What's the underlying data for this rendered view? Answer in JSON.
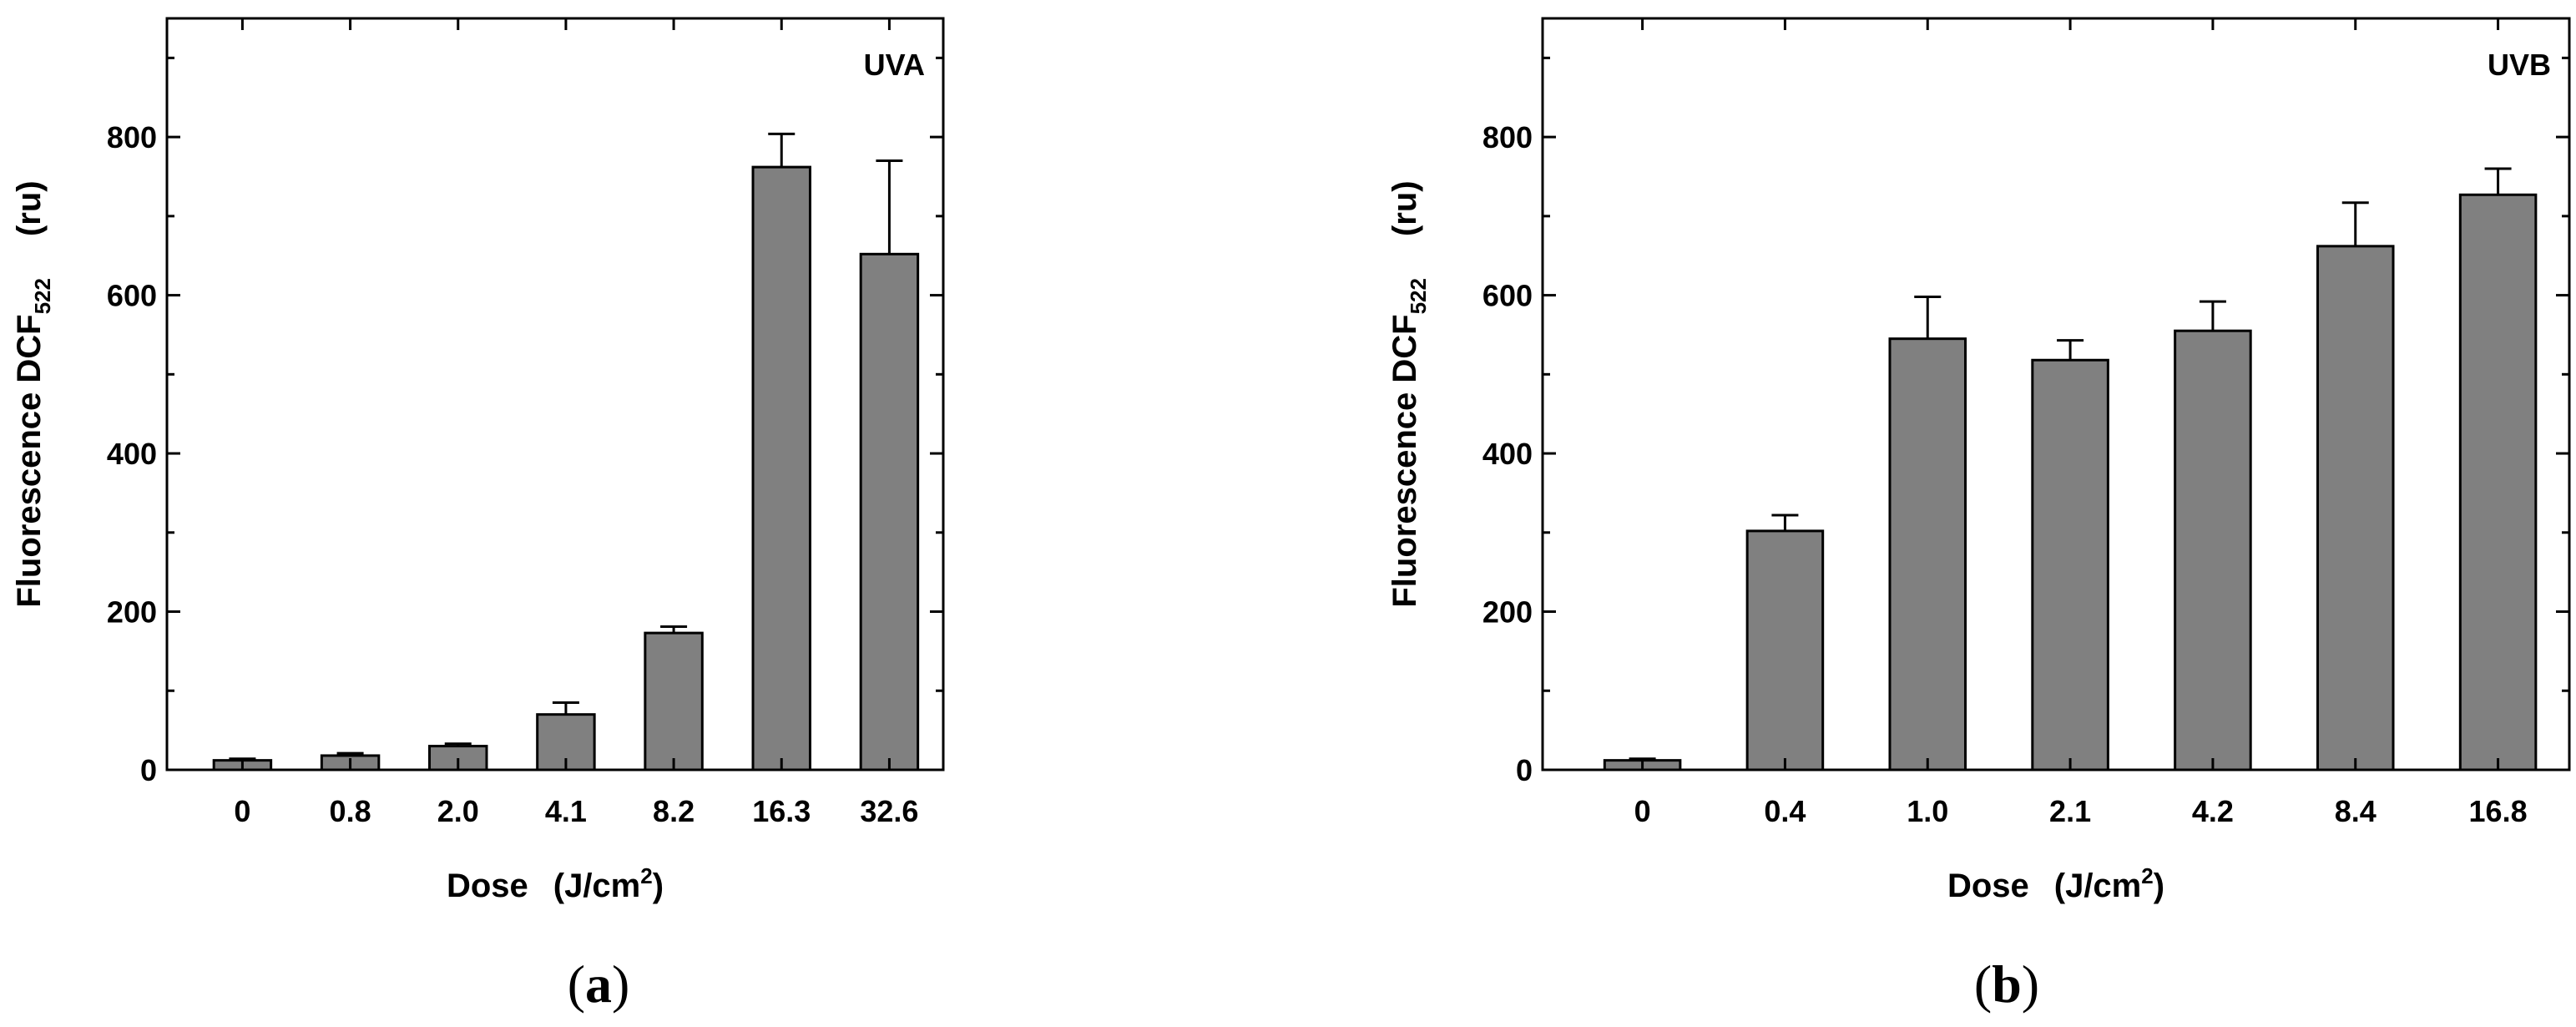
{
  "chart_data": [
    {
      "type": "bar",
      "panel_label": "UVA",
      "caption": {
        "open": "(",
        "letter": "a",
        "close": ")"
      },
      "categories": [
        "0",
        "0.8",
        "2.0",
        "4.1",
        "8.2",
        "16.3",
        "32.6"
      ],
      "values": [
        12,
        18,
        30,
        70,
        173,
        762,
        652
      ],
      "errors": [
        2,
        3,
        3,
        15,
        8,
        42,
        118
      ],
      "ylim": [
        0,
        950
      ],
      "yticks": [
        0,
        200,
        400,
        600,
        800
      ],
      "ylabel": {
        "main": "Fluorescence DCF",
        "sub": "522",
        "unit": "(ru)"
      },
      "xlabel": {
        "main": "Dose",
        "unit_open": "(J/cm",
        "sup": "2",
        "unit_close": ")"
      },
      "bar_color": "#808080"
    },
    {
      "type": "bar",
      "panel_label": "UVB",
      "caption": {
        "open": "(",
        "letter": "b",
        "close": ")"
      },
      "categories": [
        "0",
        "0.4",
        "1.0",
        "2.1",
        "4.2",
        "8.4",
        "16.8"
      ],
      "values": [
        12,
        302,
        545,
        518,
        555,
        662,
        727
      ],
      "errors": [
        2,
        20,
        53,
        25,
        37,
        55,
        33
      ],
      "ylim": [
        0,
        950
      ],
      "yticks": [
        0,
        200,
        400,
        600,
        800
      ],
      "ylabel": {
        "main": "Fluorescence DCF",
        "sub": "522",
        "unit": "(ru)"
      },
      "xlabel": {
        "main": "Dose",
        "unit_open": "(J/cm",
        "sup": "2",
        "unit_close": ")"
      },
      "bar_color": "#808080"
    }
  ]
}
